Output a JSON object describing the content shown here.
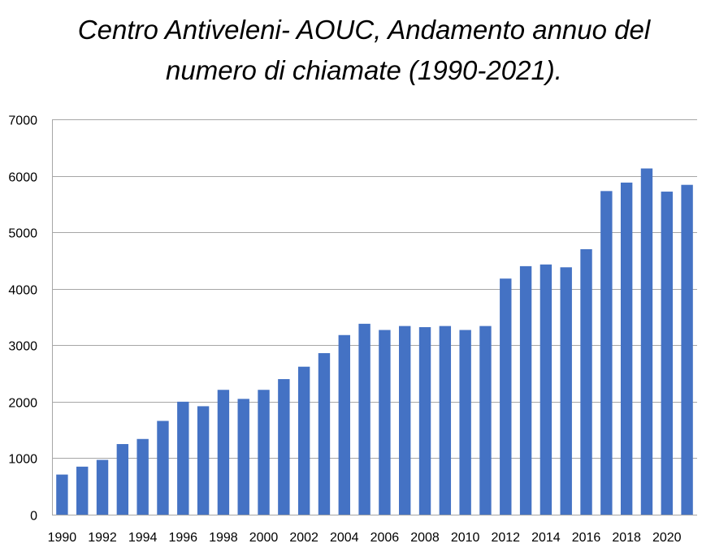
{
  "chart_data": {
    "type": "bar",
    "title_lines": [
      "Centro Antiveleni- AOUC, Andamento annuo del",
      "numero di chiamate (1990-2021)."
    ],
    "xlabel": "",
    "ylabel": "",
    "ylim": [
      0,
      7000
    ],
    "yticks": [
      0,
      1000,
      2000,
      3000,
      4000,
      5000,
      6000,
      7000
    ],
    "grid": true,
    "legend": "none",
    "bar_color": "#4472C4",
    "grid_color": "#A6A6A6",
    "categories": [
      "1990",
      "1991",
      "1992",
      "1993",
      "1994",
      "1995",
      "1996",
      "1997",
      "1998",
      "1999",
      "2000",
      "2001",
      "2002",
      "2003",
      "2004",
      "2005",
      "2006",
      "2007",
      "2008",
      "2009",
      "2010",
      "2011",
      "2012",
      "2013",
      "2014",
      "2015",
      "2016",
      "2017",
      "2018",
      "2019",
      "2020",
      "2021"
    ],
    "xtick_labels": [
      "1990",
      "1992",
      "1994",
      "1996",
      "1998",
      "2000",
      "2002",
      "2004",
      "2006",
      "2008",
      "2010",
      "2012",
      "2014",
      "2016",
      "2018",
      "2020"
    ],
    "values": [
      710,
      850,
      970,
      1250,
      1340,
      1660,
      2000,
      1920,
      2210,
      2050,
      2210,
      2400,
      2620,
      2860,
      3180,
      3380,
      3270,
      3340,
      3320,
      3340,
      3270,
      3340,
      4180,
      4400,
      4430,
      4380,
      4700,
      5730,
      5880,
      6130,
      5720,
      5840
    ]
  }
}
